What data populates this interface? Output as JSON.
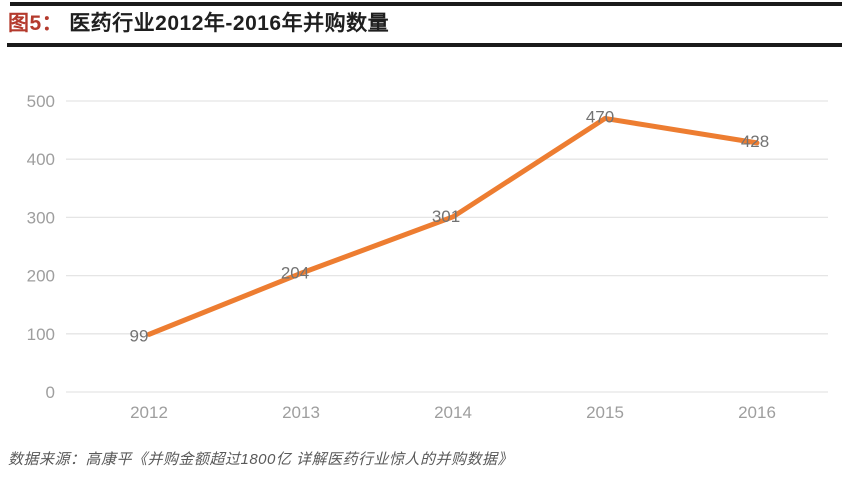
{
  "header": {
    "figure_label": "图5：",
    "title": "医药行业2012年-2016年并购数量"
  },
  "chart_data": {
    "type": "line",
    "title": "医药行业2012年-2016年并购数量",
    "categories": [
      "2012",
      "2013",
      "2014",
      "2015",
      "2016"
    ],
    "series": [
      {
        "name": "并购数量",
        "values": [
          99,
          204,
          301,
          470,
          428
        ]
      }
    ],
    "data_labels": [
      "99",
      "204",
      "301",
      "470",
      "428"
    ],
    "xlabel": "",
    "ylabel": "",
    "ylim": [
      0,
      500
    ],
    "yticks": [
      0,
      100,
      200,
      300,
      400,
      500
    ],
    "grid": "horizontal",
    "legend": "none"
  },
  "footer": {
    "source": "数据来源：高康平《并购金额超过1800亿 详解医药行业惊人的并购数据》"
  },
  "colors": {
    "accent_red": "#b43a2d",
    "line_orange": "#ed7d31",
    "grid_line": "#e5e5e5",
    "axis_text": "#9e9e9e",
    "data_label_text": "#737373",
    "rule_black": "#1a1a1a"
  }
}
